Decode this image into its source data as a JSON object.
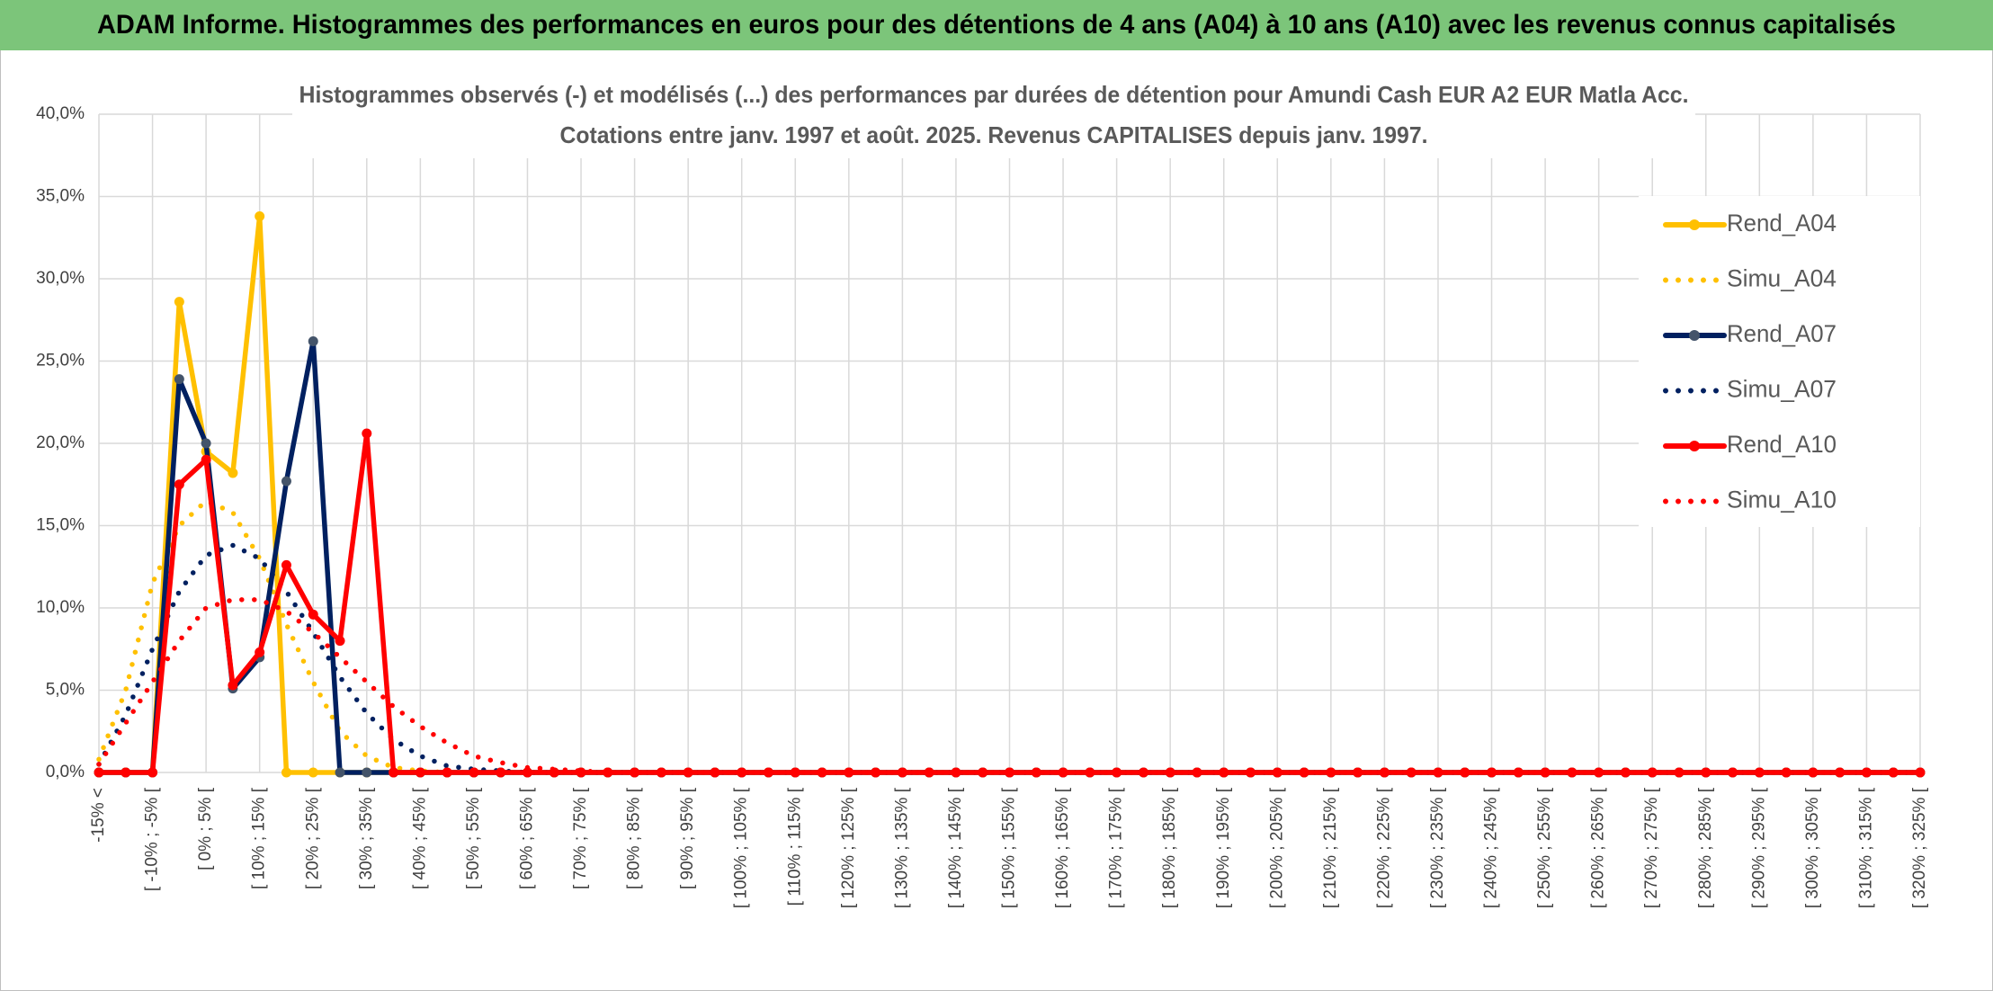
{
  "chart_data": {
    "type": "line",
    "title": "ADAM Informe. Histogrammes des performances en euros pour des détentions de 4 ans (A04) à 10 ans (A10) avec les revenus connus capitalisés",
    "subtitle": [
      "Histogrammes observés (-) et modélisés (...) des performances par durées de détention pour Amundi Cash EUR A2 EUR Matla Acc.",
      "Cotations entre janv. 1997 et août. 2025. Revenus CAPITALISES depuis janv. 1997."
    ],
    "categories": [
      "-15% <",
      null,
      "[ -10% ; -5% [",
      null,
      "[ 0% ; 5% [",
      null,
      "[ 10% ; 15% [",
      null,
      "[ 20% ; 25% [",
      null,
      "[ 30% ; 35% [",
      null,
      "[ 40% ; 45% [",
      null,
      "[ 50% ; 55% [",
      null,
      "[ 60% ; 65% [",
      null,
      "[ 70% ; 75% [",
      null,
      "[ 80% ; 85% [",
      null,
      "[ 90% ; 95% [",
      null,
      "[ 100% ; 105% [",
      null,
      "[ 110% ; 115% [",
      null,
      "[ 120% ; 125% [",
      null,
      "[ 130% ; 135% [",
      null,
      "[ 140% ; 145% [",
      null,
      "[ 150% ; 155% [",
      null,
      "[ 160% ; 165% [",
      null,
      "[ 170% ; 175% [",
      null,
      "[ 180% ; 185% [",
      null,
      "[ 190% ; 195% [",
      null,
      "[ 200% ; 205% [",
      null,
      "[ 210% ; 215% [",
      null,
      "[ 220% ; 225% [",
      null,
      "[ 230% ; 235% [",
      null,
      "[ 240% ; 245% [",
      null,
      "[ 250% ; 255% [",
      null,
      "[ 260% ; 265% [",
      null,
      "[ 270% ; 275% [",
      null,
      "[ 280% ; 285% [",
      null,
      "[ 290% ; 295% [",
      null,
      "[ 300% ; 305% [",
      null,
      "[ 310% ; 315% [",
      null,
      "[ 320% ; 325% ["
    ],
    "series": [
      {
        "name": "Rend_A04",
        "color": "#ffc000",
        "line_style": "solid",
        "markers": true,
        "values": [
          0,
          0,
          0,
          28.6,
          19.5,
          18.2,
          33.8,
          0,
          0,
          0,
          0,
          0,
          0,
          0,
          0,
          0,
          0,
          0,
          0,
          0,
          0,
          0,
          0,
          0,
          0,
          0,
          0,
          0,
          0,
          0,
          0,
          0,
          0,
          0,
          0,
          0,
          0,
          0,
          0,
          0,
          0,
          0,
          0,
          0,
          0,
          0,
          0,
          0,
          0,
          0,
          0,
          0,
          0,
          0,
          0,
          0,
          0,
          0,
          0,
          0,
          0,
          0,
          0,
          0,
          0,
          0,
          0,
          0,
          0
        ]
      },
      {
        "name": "Simu_A04",
        "color": "#ffc000",
        "line_style": "dotted",
        "markers": false,
        "values": [
          0.8,
          5,
          11.5,
          15,
          16.5,
          15.8,
          13,
          9,
          5.5,
          2.5,
          1,
          0.3,
          0.1,
          0,
          0,
          0,
          0,
          0,
          0,
          0,
          0,
          0,
          0,
          0,
          0,
          0,
          0,
          0,
          0,
          0,
          0,
          0,
          0,
          0,
          0,
          0,
          0,
          0,
          0,
          0,
          0,
          0,
          0,
          0,
          0,
          0,
          0,
          0,
          0,
          0,
          0,
          0,
          0,
          0,
          0,
          0,
          0,
          0,
          0,
          0,
          0,
          0,
          0,
          0,
          0,
          0,
          0,
          0,
          0
        ]
      },
      {
        "name": "Rend_A07",
        "color": "#002060",
        "marker_color": "#44546a",
        "line_style": "solid",
        "markers": true,
        "values": [
          0,
          0,
          0,
          23.9,
          20.0,
          5.1,
          7.0,
          17.7,
          26.2,
          0,
          0,
          0,
          0,
          0,
          0,
          0,
          0,
          0,
          0,
          0,
          0,
          0,
          0,
          0,
          0,
          0,
          0,
          0,
          0,
          0,
          0,
          0,
          0,
          0,
          0,
          0,
          0,
          0,
          0,
          0,
          0,
          0,
          0,
          0,
          0,
          0,
          0,
          0,
          0,
          0,
          0,
          0,
          0,
          0,
          0,
          0,
          0,
          0,
          0,
          0,
          0,
          0,
          0,
          0,
          0,
          0,
          0,
          0,
          0
        ]
      },
      {
        "name": "Simu_A07",
        "color": "#002060",
        "line_style": "dotted",
        "markers": false,
        "values": [
          0.5,
          3.5,
          7.5,
          11,
          13.2,
          13.8,
          13,
          11,
          8.5,
          5.8,
          3.6,
          2,
          1,
          0.4,
          0.2,
          0.1,
          0,
          0,
          0,
          0,
          0,
          0,
          0,
          0,
          0,
          0,
          0,
          0,
          0,
          0,
          0,
          0,
          0,
          0,
          0,
          0,
          0,
          0,
          0,
          0,
          0,
          0,
          0,
          0,
          0,
          0,
          0,
          0,
          0,
          0,
          0,
          0,
          0,
          0,
          0,
          0,
          0,
          0,
          0,
          0,
          0,
          0,
          0,
          0,
          0,
          0,
          0,
          0,
          0
        ]
      },
      {
        "name": "Rend_A10",
        "color": "#ff0000",
        "line_style": "solid",
        "markers": true,
        "values": [
          0,
          0,
          0,
          17.5,
          19.0,
          5.3,
          7.3,
          12.6,
          9.6,
          8.0,
          20.6,
          0,
          0,
          0,
          0,
          0,
          0,
          0,
          0,
          0,
          0,
          0,
          0,
          0,
          0,
          0,
          0,
          0,
          0,
          0,
          0,
          0,
          0,
          0,
          0,
          0,
          0,
          0,
          0,
          0,
          0,
          0,
          0,
          0,
          0,
          0,
          0,
          0,
          0,
          0,
          0,
          0,
          0,
          0,
          0,
          0,
          0,
          0,
          0,
          0,
          0,
          0,
          0,
          0,
          0,
          0,
          0,
          0,
          0
        ]
      },
      {
        "name": "Simu_A10",
        "color": "#ff0000",
        "line_style": "dotted",
        "markers": false,
        "values": [
          0.5,
          3,
          5.5,
          8,
          10,
          10.5,
          10.5,
          9.8,
          8.5,
          7,
          5.5,
          4,
          2.8,
          1.8,
          1,
          0.6,
          0.3,
          0.2,
          0.1,
          0,
          0,
          0,
          0,
          0,
          0,
          0,
          0,
          0,
          0,
          0,
          0,
          0,
          0,
          0,
          0,
          0,
          0,
          0,
          0,
          0,
          0,
          0,
          0,
          0,
          0,
          0,
          0,
          0,
          0,
          0,
          0,
          0,
          0,
          0,
          0,
          0,
          0,
          0,
          0,
          0,
          0,
          0,
          0,
          0,
          0,
          0,
          0,
          0,
          0
        ]
      }
    ],
    "ylim": [
      0,
      40
    ],
    "yticks": [
      {
        "value": 0,
        "label": "0,0%"
      },
      {
        "value": 5,
        "label": "5,0%"
      },
      {
        "value": 10,
        "label": "10,0%"
      },
      {
        "value": 15,
        "label": "15,0%"
      },
      {
        "value": 20,
        "label": "20,0%"
      },
      {
        "value": 25,
        "label": "25,0%"
      },
      {
        "value": 30,
        "label": "30,0%"
      },
      {
        "value": 35,
        "label": "35,0%"
      },
      {
        "value": 40,
        "label": "40,0%"
      }
    ],
    "grid": true,
    "legend": "upper right"
  }
}
